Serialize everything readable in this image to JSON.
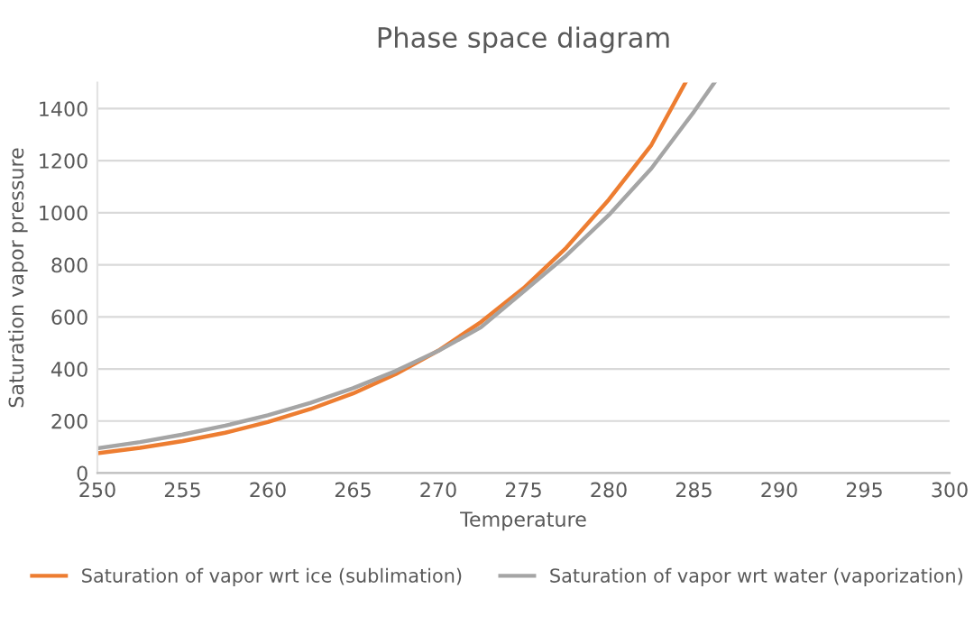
{
  "chart_data": {
    "type": "line",
    "title": "Phase space diagram",
    "xlabel": "Temperature",
    "ylabel": "Saturation vapor pressure",
    "series": [
      {
        "name": "Saturation of vapor wrt ice (sublimation)",
        "color": "#ed7d31",
        "x": [
          250,
          252.5,
          255,
          257.5,
          260,
          262.5,
          265,
          267.5,
          270,
          272.5,
          275,
          277.5,
          280,
          282.5,
          284.5
        ],
        "values": [
          76,
          97,
          123,
          155,
          196,
          246,
          306,
          380,
          470,
          580,
          710,
          865,
          1050,
          1260,
          1500
        ]
      },
      {
        "name": "Saturation of vapor wrt water (vaporization)",
        "color": "#a5a5a5",
        "x": [
          250,
          252.5,
          255,
          257.5,
          260,
          262.5,
          265,
          267.5,
          270,
          272.5,
          275,
          277.5,
          280,
          282.5,
          285,
          286.2
        ],
        "values": [
          95,
          119,
          148,
          182,
          222,
          270,
          326,
          392,
          469,
          560,
          697,
          835,
          991,
          1170,
          1388,
          1500
        ]
      }
    ],
    "xlim": [
      250,
      300
    ],
    "xticks": [
      250,
      255,
      260,
      265,
      270,
      275,
      280,
      285,
      290,
      295,
      300
    ],
    "ylim": [
      0,
      1500
    ],
    "yticks": [
      0,
      200,
      400,
      600,
      800,
      1000,
      1200,
      1400
    ],
    "grid": "y",
    "legend": "bottom",
    "marker": "none",
    "line_style": "solid"
  }
}
